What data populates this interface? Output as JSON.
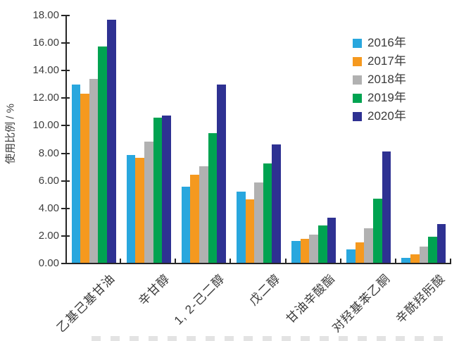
{
  "chart_data": {
    "type": "bar",
    "title": "",
    "xlabel": "",
    "ylabel": "使用比例 / %",
    "ylim": [
      0,
      18
    ],
    "y_tick_step": 2,
    "y_tick_labels": [
      "0.00",
      "2.00",
      "4.00",
      "6.00",
      "8.00",
      "10.00",
      "12.00",
      "14.00",
      "16.00",
      "18.00"
    ],
    "grid": false,
    "legend_position": "upper-right-inside",
    "categories": [
      "乙基己基甘油",
      "辛甘醇",
      "1, 2-己二醇",
      "戊二醇",
      "甘油辛酸酯",
      "对羟基苯乙酮",
      "辛酰羟肟酸"
    ],
    "series": [
      {
        "name": "2016年",
        "color": "#29A7DE",
        "values": [
          12.95,
          7.8,
          5.5,
          5.15,
          1.6,
          0.95,
          0.35
        ]
      },
      {
        "name": "2017年",
        "color": "#F5991F",
        "values": [
          12.25,
          7.6,
          6.4,
          4.6,
          1.75,
          1.5,
          0.6
        ]
      },
      {
        "name": "2018年",
        "color": "#B1B1B1",
        "values": [
          13.35,
          8.8,
          7.0,
          5.85,
          2.05,
          2.5,
          1.2
        ]
      },
      {
        "name": "2019年",
        "color": "#00A351",
        "values": [
          15.7,
          10.55,
          9.4,
          7.2,
          2.7,
          4.65,
          1.9
        ]
      },
      {
        "name": "2020年",
        "color": "#2E3192",
        "values": [
          17.65,
          10.7,
          12.95,
          8.6,
          3.25,
          8.1,
          2.8
        ]
      }
    ],
    "axis_color": "#262626",
    "text_color": "#3d3d3d"
  }
}
